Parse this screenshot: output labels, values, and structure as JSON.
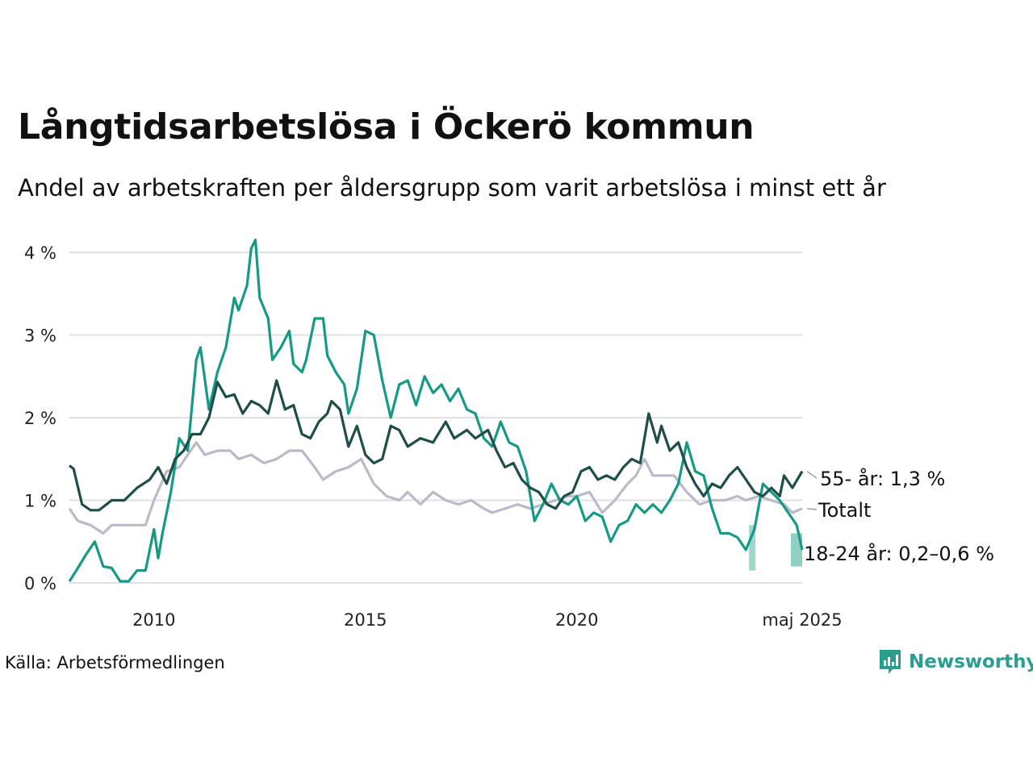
{
  "title": "Långtidsarbetslösa i Öckerö kommun",
  "subtitle": "Andel av arbetskraften per åldersgrupp som varit arbetslösa i minst ett år",
  "source": "Källa: Arbetsförmedlingen",
  "brand": "Newsworthy",
  "colors": {
    "series_55": "#1f4e48",
    "series_total": "#bcbac8",
    "series_18_24": "#169a86",
    "band": "#8fd0c3",
    "grid": "#e0e0e4",
    "brand": "#2a9d8f"
  },
  "chart_data": {
    "type": "line",
    "ylim": [
      0,
      4
    ],
    "y_ticks": [
      {
        "value": 0,
        "label": "0 %"
      },
      {
        "value": 1,
        "label": "1 %"
      },
      {
        "value": 2,
        "label": "2 %"
      },
      {
        "value": 3,
        "label": "3 %"
      },
      {
        "value": 4,
        "label": "4 %"
      }
    ],
    "x_range": [
      2008.0,
      2025.33
    ],
    "x_ticks": [
      {
        "value": 2010,
        "label": "2010"
      },
      {
        "value": 2015,
        "label": "2015"
      },
      {
        "value": 2020,
        "label": "2020"
      },
      {
        "value": 2025.33,
        "label": "maj 2025"
      }
    ],
    "grid": true,
    "series": [
      {
        "key": "total",
        "name": "Totalt",
        "end_label": "Totalt",
        "points": [
          [
            2008.0,
            0.9
          ],
          [
            2008.2,
            0.75
          ],
          [
            2008.5,
            0.7
          ],
          [
            2008.8,
            0.6
          ],
          [
            2009.0,
            0.7
          ],
          [
            2009.5,
            0.7
          ],
          [
            2009.8,
            0.7
          ],
          [
            2010.0,
            1.0
          ],
          [
            2010.3,
            1.35
          ],
          [
            2010.6,
            1.4
          ],
          [
            2010.8,
            1.55
          ],
          [
            2011.0,
            1.7
          ],
          [
            2011.2,
            1.55
          ],
          [
            2011.5,
            1.6
          ],
          [
            2011.8,
            1.6
          ],
          [
            2012.0,
            1.5
          ],
          [
            2012.3,
            1.55
          ],
          [
            2012.6,
            1.45
          ],
          [
            2012.9,
            1.5
          ],
          [
            2013.2,
            1.6
          ],
          [
            2013.5,
            1.6
          ],
          [
            2013.8,
            1.4
          ],
          [
            2014.0,
            1.25
          ],
          [
            2014.3,
            1.35
          ],
          [
            2014.6,
            1.4
          ],
          [
            2014.9,
            1.5
          ],
          [
            2015.2,
            1.2
          ],
          [
            2015.5,
            1.05
          ],
          [
            2015.8,
            1.0
          ],
          [
            2016.0,
            1.1
          ],
          [
            2016.3,
            0.95
          ],
          [
            2016.6,
            1.1
          ],
          [
            2016.9,
            1.0
          ],
          [
            2017.2,
            0.95
          ],
          [
            2017.5,
            1.0
          ],
          [
            2017.8,
            0.9
          ],
          [
            2018.0,
            0.85
          ],
          [
            2018.3,
            0.9
          ],
          [
            2018.6,
            0.95
          ],
          [
            2018.9,
            0.9
          ],
          [
            2019.2,
            0.95
          ],
          [
            2019.5,
            1.0
          ],
          [
            2019.8,
            1.05
          ],
          [
            2020.0,
            1.05
          ],
          [
            2020.3,
            1.1
          ],
          [
            2020.6,
            0.85
          ],
          [
            2020.9,
            1.0
          ],
          [
            2021.2,
            1.2
          ],
          [
            2021.4,
            1.3
          ],
          [
            2021.6,
            1.5
          ],
          [
            2021.8,
            1.3
          ],
          [
            2022.0,
            1.3
          ],
          [
            2022.3,
            1.3
          ],
          [
            2022.6,
            1.1
          ],
          [
            2022.9,
            0.95
          ],
          [
            2023.2,
            1.0
          ],
          [
            2023.5,
            1.0
          ],
          [
            2023.8,
            1.05
          ],
          [
            2024.0,
            1.0
          ],
          [
            2024.3,
            1.05
          ],
          [
            2024.6,
            1.0
          ],
          [
            2024.9,
            0.95
          ],
          [
            2025.1,
            0.85
          ],
          [
            2025.33,
            0.9
          ]
        ]
      },
      {
        "key": "55",
        "name": "55- år",
        "end_label": "55- år: 1,3 %",
        "points": [
          [
            2008.0,
            1.42
          ],
          [
            2008.1,
            1.38
          ],
          [
            2008.3,
            0.95
          ],
          [
            2008.5,
            0.88
          ],
          [
            2008.7,
            0.88
          ],
          [
            2009.0,
            1.0
          ],
          [
            2009.3,
            1.0
          ],
          [
            2009.6,
            1.15
          ],
          [
            2009.9,
            1.25
          ],
          [
            2010.1,
            1.4
          ],
          [
            2010.3,
            1.2
          ],
          [
            2010.5,
            1.5
          ],
          [
            2010.7,
            1.6
          ],
          [
            2010.9,
            1.8
          ],
          [
            2011.1,
            1.8
          ],
          [
            2011.3,
            2.0
          ],
          [
            2011.5,
            2.43
          ],
          [
            2011.7,
            2.25
          ],
          [
            2011.9,
            2.28
          ],
          [
            2012.1,
            2.05
          ],
          [
            2012.3,
            2.2
          ],
          [
            2012.5,
            2.15
          ],
          [
            2012.7,
            2.05
          ],
          [
            2012.9,
            2.45
          ],
          [
            2013.1,
            2.1
          ],
          [
            2013.3,
            2.15
          ],
          [
            2013.5,
            1.8
          ],
          [
            2013.7,
            1.75
          ],
          [
            2013.9,
            1.95
          ],
          [
            2014.1,
            2.05
          ],
          [
            2014.2,
            2.2
          ],
          [
            2014.4,
            2.1
          ],
          [
            2014.6,
            1.65
          ],
          [
            2014.8,
            1.9
          ],
          [
            2015.0,
            1.55
          ],
          [
            2015.2,
            1.45
          ],
          [
            2015.4,
            1.5
          ],
          [
            2015.6,
            1.9
          ],
          [
            2015.8,
            1.85
          ],
          [
            2016.0,
            1.65
          ],
          [
            2016.3,
            1.75
          ],
          [
            2016.6,
            1.7
          ],
          [
            2016.9,
            1.95
          ],
          [
            2017.1,
            1.75
          ],
          [
            2017.4,
            1.85
          ],
          [
            2017.6,
            1.75
          ],
          [
            2017.9,
            1.85
          ],
          [
            2018.1,
            1.6
          ],
          [
            2018.3,
            1.4
          ],
          [
            2018.5,
            1.45
          ],
          [
            2018.7,
            1.25
          ],
          [
            2018.9,
            1.15
          ],
          [
            2019.1,
            1.1
          ],
          [
            2019.3,
            0.95
          ],
          [
            2019.5,
            0.9
          ],
          [
            2019.7,
            1.05
          ],
          [
            2019.9,
            1.1
          ],
          [
            2020.1,
            1.35
          ],
          [
            2020.3,
            1.4
          ],
          [
            2020.5,
            1.25
          ],
          [
            2020.7,
            1.3
          ],
          [
            2020.9,
            1.25
          ],
          [
            2021.1,
            1.4
          ],
          [
            2021.3,
            1.5
          ],
          [
            2021.5,
            1.45
          ],
          [
            2021.7,
            2.05
          ],
          [
            2021.9,
            1.7
          ],
          [
            2022.0,
            1.9
          ],
          [
            2022.2,
            1.6
          ],
          [
            2022.4,
            1.7
          ],
          [
            2022.6,
            1.4
          ],
          [
            2022.8,
            1.2
          ],
          [
            2023.0,
            1.05
          ],
          [
            2023.2,
            1.2
          ],
          [
            2023.4,
            1.15
          ],
          [
            2023.6,
            1.3
          ],
          [
            2023.8,
            1.4
          ],
          [
            2024.0,
            1.25
          ],
          [
            2024.2,
            1.1
          ],
          [
            2024.4,
            1.05
          ],
          [
            2024.6,
            1.15
          ],
          [
            2024.8,
            1.05
          ],
          [
            2024.9,
            1.3
          ],
          [
            2025.1,
            1.15
          ],
          [
            2025.33,
            1.35
          ]
        ]
      },
      {
        "key": "18_24",
        "name": "18-24 år",
        "end_label": "18-24 år: 0,2–0,6 %",
        "end_range": [
          0.2,
          0.6
        ],
        "end_value": 0.4,
        "points": [
          [
            2008.0,
            0.02
          ],
          [
            2008.2,
            0.18
          ],
          [
            2008.4,
            0.35
          ],
          [
            2008.6,
            0.5
          ],
          [
            2008.8,
            0.2
          ],
          [
            2009.0,
            0.18
          ],
          [
            2009.2,
            0.02
          ],
          [
            2009.4,
            0.02
          ],
          [
            2009.6,
            0.15
          ],
          [
            2009.8,
            0.15
          ],
          [
            2010.0,
            0.65
          ],
          [
            2010.1,
            0.3
          ],
          [
            2010.2,
            0.6
          ],
          [
            2010.4,
            1.1
          ],
          [
            2010.6,
            1.75
          ],
          [
            2010.8,
            1.6
          ],
          [
            2011.0,
            2.7
          ],
          [
            2011.1,
            2.85
          ],
          [
            2011.3,
            2.1
          ],
          [
            2011.5,
            2.55
          ],
          [
            2011.7,
            2.85
          ],
          [
            2011.9,
            3.45
          ],
          [
            2012.0,
            3.3
          ],
          [
            2012.2,
            3.6
          ],
          [
            2012.3,
            4.05
          ],
          [
            2012.4,
            4.15
          ],
          [
            2012.5,
            3.45
          ],
          [
            2012.7,
            3.2
          ],
          [
            2012.8,
            2.7
          ],
          [
            2013.0,
            2.85
          ],
          [
            2013.2,
            3.05
          ],
          [
            2013.3,
            2.65
          ],
          [
            2013.5,
            2.55
          ],
          [
            2013.6,
            2.7
          ],
          [
            2013.8,
            3.2
          ],
          [
            2014.0,
            3.2
          ],
          [
            2014.1,
            2.75
          ],
          [
            2014.3,
            2.55
          ],
          [
            2014.5,
            2.4
          ],
          [
            2014.6,
            2.05
          ],
          [
            2014.8,
            2.35
          ],
          [
            2015.0,
            3.05
          ],
          [
            2015.2,
            3.0
          ],
          [
            2015.4,
            2.45
          ],
          [
            2015.6,
            2.0
          ],
          [
            2015.8,
            2.4
          ],
          [
            2016.0,
            2.45
          ],
          [
            2016.2,
            2.15
          ],
          [
            2016.4,
            2.5
          ],
          [
            2016.6,
            2.3
          ],
          [
            2016.8,
            2.4
          ],
          [
            2017.0,
            2.2
          ],
          [
            2017.2,
            2.35
          ],
          [
            2017.4,
            2.1
          ],
          [
            2017.6,
            2.05
          ],
          [
            2017.8,
            1.75
          ],
          [
            2018.0,
            1.65
          ],
          [
            2018.2,
            1.95
          ],
          [
            2018.4,
            1.7
          ],
          [
            2018.6,
            1.65
          ],
          [
            2018.8,
            1.35
          ],
          [
            2019.0,
            0.75
          ],
          [
            2019.2,
            0.95
          ],
          [
            2019.4,
            1.2
          ],
          [
            2019.6,
            1.0
          ],
          [
            2019.8,
            0.95
          ],
          [
            2020.0,
            1.05
          ],
          [
            2020.2,
            0.75
          ],
          [
            2020.4,
            0.85
          ],
          [
            2020.6,
            0.8
          ],
          [
            2020.8,
            0.5
          ],
          [
            2021.0,
            0.7
          ],
          [
            2021.2,
            0.75
          ],
          [
            2021.4,
            0.95
          ],
          [
            2021.6,
            0.85
          ],
          [
            2021.8,
            0.95
          ],
          [
            2022.0,
            0.85
          ],
          [
            2022.2,
            1.0
          ],
          [
            2022.4,
            1.2
          ],
          [
            2022.6,
            1.7
          ],
          [
            2022.8,
            1.35
          ],
          [
            2023.0,
            1.3
          ],
          [
            2023.2,
            0.9
          ],
          [
            2023.4,
            0.6
          ],
          [
            2023.6,
            0.6
          ],
          [
            2023.8,
            0.55
          ],
          [
            2024.0,
            0.4
          ],
          [
            2024.2,
            0.65
          ],
          [
            2024.4,
            1.2
          ],
          [
            2024.6,
            1.1
          ],
          [
            2024.8,
            1.0
          ],
          [
            2025.0,
            0.85
          ],
          [
            2025.2,
            0.7
          ],
          [
            2025.33,
            0.4
          ]
        ]
      }
    ]
  }
}
